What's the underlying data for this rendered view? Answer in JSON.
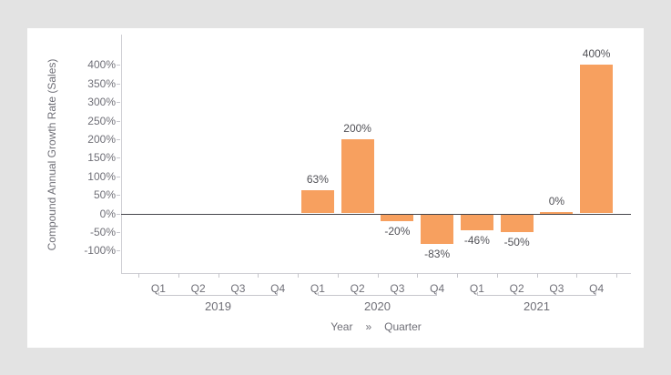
{
  "page": {
    "background": "#e3e3e3",
    "card_background": "#ffffff"
  },
  "chart_data": {
    "type": "bar",
    "title": "",
    "ylabel": "Compound Annual Growth Rate (Sales)",
    "xlabel": "Year » Quarter",
    "xlabel_parts": {
      "primary": "Year",
      "separator": "»",
      "secondary": "Quarter"
    },
    "legend": "none",
    "grid": "none",
    "y_axis": {
      "min": -100,
      "max": 400,
      "step": 50,
      "tick_labels": [
        "400%",
        "350%",
        "300%",
        "250%",
        "200%",
        "150%",
        "100%",
        "50%",
        "0%",
        "-50%",
        "-100%"
      ]
    },
    "x_hierarchy": [
      "Year",
      "Quarter"
    ],
    "groups": [
      {
        "year": "2019",
        "quarters": [
          "Q1",
          "Q2",
          "Q3",
          "Q4"
        ],
        "values": [
          null,
          null,
          null,
          null
        ],
        "value_labels": [
          "",
          "",
          "",
          ""
        ]
      },
      {
        "year": "2020",
        "quarters": [
          "Q1",
          "Q2",
          "Q3",
          "Q4"
        ],
        "values": [
          63,
          200,
          -20,
          -83
        ],
        "value_labels": [
          "63%",
          "200%",
          "-20%",
          "-83%"
        ]
      },
      {
        "year": "2021",
        "quarters": [
          "Q1",
          "Q2",
          "Q3",
          "Q4"
        ],
        "values": [
          -46,
          -50,
          0,
          400
        ],
        "value_labels": [
          "-46%",
          "-50%",
          "0%",
          "400%"
        ]
      }
    ]
  },
  "colors": {
    "bar": "#f7a05f",
    "tick_label": "#6f6f77",
    "data_label": "#515157",
    "axis_line": "#cfcfd4",
    "tick_mark": "#c6c6cc",
    "zero_line": "#45454c"
  }
}
